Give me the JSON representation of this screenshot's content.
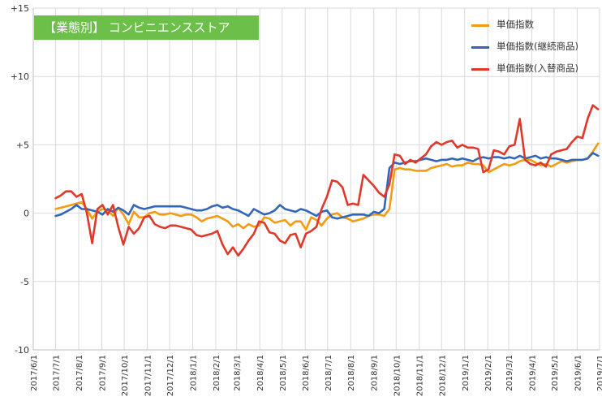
{
  "chart_data": {
    "type": "line",
    "title": "【業態別】 コンビニエンスストア",
    "xlabel": "",
    "ylabel": "",
    "ylim": [
      -10,
      15
    ],
    "yticks": [
      {
        "value": 15,
        "label": "+15"
      },
      {
        "value": 10,
        "label": "+10"
      },
      {
        "value": 5,
        "label": "+5"
      },
      {
        "value": 0,
        "label": "0"
      },
      {
        "value": -5,
        "label": "-5"
      },
      {
        "value": -10,
        "label": "-10"
      }
    ],
    "x_ticks": [
      "2017/6/1",
      "2017/7/1",
      "2017/8/1",
      "2017/9/1",
      "2017/10/1",
      "2017/11/1",
      "2017/12/1",
      "2018/1/1",
      "2018/2/1",
      "2018/3/1",
      "2018/4/1",
      "2018/5/1",
      "2018/6/1",
      "2018/7/1",
      "2018/8/1",
      "2018/9/1",
      "2018/10/1",
      "2018/11/1",
      "2018/12/1",
      "2019/1/1",
      "2019/2/1",
      "2019/3/1",
      "2019/4/1",
      "2019/5/1",
      "2019/6/1",
      "2019/7/1"
    ],
    "x_range": [
      "2017/6/1",
      "2019/7/1"
    ],
    "x": [
      "2017/7/1",
      "2017/7/8",
      "2017/7/15",
      "2017/7/22",
      "2017/7/29",
      "2017/8/5",
      "2017/8/12",
      "2017/8/19",
      "2017/8/26",
      "2017/9/2",
      "2017/9/9",
      "2017/9/16",
      "2017/9/23",
      "2017/9/30",
      "2017/10/7",
      "2017/10/14",
      "2017/10/21",
      "2017/10/28",
      "2017/11/4",
      "2017/11/11",
      "2017/11/18",
      "2017/11/25",
      "2017/12/2",
      "2017/12/9",
      "2017/12/16",
      "2017/12/23",
      "2017/12/30",
      "2018/1/6",
      "2018/1/13",
      "2018/1/20",
      "2018/1/27",
      "2018/2/3",
      "2018/2/10",
      "2018/2/17",
      "2018/2/24",
      "2018/3/3",
      "2018/3/10",
      "2018/3/17",
      "2018/3/24",
      "2018/3/31",
      "2018/4/7",
      "2018/4/14",
      "2018/4/21",
      "2018/4/28",
      "2018/5/5",
      "2018/5/12",
      "2018/5/19",
      "2018/5/26",
      "2018/6/2",
      "2018/6/9",
      "2018/6/16",
      "2018/6/23",
      "2018/6/30",
      "2018/7/7",
      "2018/7/14",
      "2018/7/21",
      "2018/7/28",
      "2018/8/4",
      "2018/8/11",
      "2018/8/18",
      "2018/8/25",
      "2018/9/1",
      "2018/9/8",
      "2018/9/15",
      "2018/9/22",
      "2018/9/29",
      "2018/10/6",
      "2018/10/13",
      "2018/10/20",
      "2018/10/27",
      "2018/11/3",
      "2018/11/10",
      "2018/11/17",
      "2018/11/24",
      "2018/12/1",
      "2018/12/8",
      "2018/12/15",
      "2018/12/22",
      "2018/12/29",
      "2019/1/5",
      "2019/1/12",
      "2019/1/19",
      "2019/1/26",
      "2019/2/2",
      "2019/2/9",
      "2019/2/16",
      "2019/2/23",
      "2019/3/2",
      "2019/3/9",
      "2019/3/16",
      "2019/3/23",
      "2019/3/30",
      "2019/4/6",
      "2019/4/13",
      "2019/4/20",
      "2019/4/27",
      "2019/5/4",
      "2019/5/11",
      "2019/5/18",
      "2019/5/25",
      "2019/6/1",
      "2019/6/8",
      "2019/6/15",
      "2019/6/22",
      "2019/6/29"
    ],
    "series": [
      {
        "name": "単価指数",
        "color": "#f39c12",
        "values": [
          0.3,
          0.4,
          0.5,
          0.6,
          0.7,
          0.8,
          0.3,
          -0.4,
          0.1,
          0.3,
          0.2,
          -0.2,
          0.4,
          -0.1,
          -0.8,
          0.1,
          -0.3,
          -0.3,
          0.0,
          0.1,
          -0.1,
          -0.1,
          0.0,
          -0.1,
          -0.2,
          -0.1,
          -0.1,
          -0.3,
          -0.6,
          -0.4,
          -0.3,
          -0.2,
          -0.4,
          -0.6,
          -1.0,
          -0.8,
          -1.1,
          -0.8,
          -1.0,
          -0.9,
          -0.3,
          -0.4,
          -0.7,
          -0.6,
          -0.5,
          -0.9,
          -0.6,
          -0.6,
          -1.2,
          -0.3,
          -0.5,
          -0.9,
          -0.4,
          -0.1,
          0.0,
          -0.3,
          -0.4,
          -0.6,
          -0.5,
          -0.4,
          -0.2,
          -0.1,
          -0.1,
          -0.2,
          0.3,
          3.2,
          3.3,
          3.2,
          3.2,
          3.1,
          3.1,
          3.1,
          3.3,
          3.4,
          3.5,
          3.6,
          3.4,
          3.5,
          3.5,
          3.7,
          3.6,
          3.6,
          3.5,
          3.0,
          3.2,
          3.4,
          3.6,
          3.5,
          3.6,
          3.8,
          3.9,
          3.9,
          3.7,
          3.5,
          3.6,
          3.4,
          3.6,
          3.8,
          3.7,
          3.8,
          3.9,
          3.9,
          4.0,
          4.5,
          5.1
        ]
      },
      {
        "name": "単価指数(継続商品)",
        "color": "#3366bb",
        "values": [
          -0.2,
          -0.1,
          0.1,
          0.3,
          0.6,
          0.3,
          0.3,
          0.2,
          0.1,
          -0.1,
          0.3,
          0.1,
          0.4,
          0.2,
          -0.1,
          0.6,
          0.4,
          0.3,
          0.4,
          0.5,
          0.5,
          0.5,
          0.5,
          0.5,
          0.5,
          0.4,
          0.3,
          0.2,
          0.2,
          0.3,
          0.5,
          0.6,
          0.4,
          0.5,
          0.3,
          0.2,
          0.0,
          -0.2,
          0.3,
          0.1,
          -0.1,
          0.0,
          0.2,
          0.6,
          0.3,
          0.2,
          0.1,
          0.3,
          0.2,
          0.0,
          -0.2,
          0.1,
          0.2,
          -0.3,
          -0.4,
          -0.3,
          -0.2,
          -0.1,
          -0.1,
          -0.1,
          -0.2,
          0.1,
          0.0,
          0.3,
          3.3,
          3.7,
          3.6,
          3.7,
          3.8,
          3.8,
          3.9,
          4.0,
          3.9,
          3.8,
          3.9,
          3.9,
          4.0,
          3.9,
          4.0,
          3.9,
          3.8,
          4.0,
          4.1,
          4.0,
          4.1,
          4.1,
          4.0,
          4.1,
          4.0,
          4.2,
          4.0,
          4.1,
          4.2,
          4.0,
          4.1,
          4.0,
          4.0,
          3.9,
          3.8,
          3.9,
          3.9,
          3.9,
          4.0,
          4.4,
          4.2
        ]
      },
      {
        "name": "単価指数(入替商品)",
        "color": "#e0392b",
        "values": [
          1.1,
          1.3,
          1.6,
          1.6,
          1.2,
          1.4,
          0.0,
          -2.2,
          0.3,
          0.6,
          -0.1,
          0.6,
          -1.0,
          -2.3,
          -1.0,
          -1.5,
          -1.1,
          -0.3,
          -0.2,
          -0.8,
          -1.0,
          -1.1,
          -0.9,
          -0.9,
          -1.0,
          -1.1,
          -1.2,
          -1.6,
          -1.7,
          -1.6,
          -1.5,
          -1.3,
          -2.3,
          -3.0,
          -2.5,
          -3.1,
          -2.6,
          -2.0,
          -1.5,
          -0.6,
          -0.7,
          -1.4,
          -1.5,
          -2.0,
          -2.2,
          -1.6,
          -1.5,
          -2.5,
          -1.5,
          -1.3,
          -1.0,
          0.3,
          1.2,
          2.4,
          2.3,
          1.9,
          0.6,
          0.7,
          0.6,
          2.8,
          2.4,
          2.0,
          1.5,
          1.2,
          2.1,
          4.3,
          4.2,
          3.6,
          3.9,
          3.7,
          4.0,
          4.3,
          4.9,
          5.2,
          5.0,
          5.2,
          5.3,
          4.8,
          5.0,
          4.8,
          4.8,
          4.7,
          3.0,
          3.2,
          4.6,
          4.5,
          4.3,
          4.9,
          5.0,
          6.9,
          3.9,
          3.6,
          3.5,
          3.7,
          3.4,
          4.3,
          4.5,
          4.6,
          4.7,
          5.2,
          5.6,
          5.5,
          6.9,
          7.9,
          7.6
        ]
      }
    ],
    "grid": true,
    "legend_position": "top-right"
  }
}
